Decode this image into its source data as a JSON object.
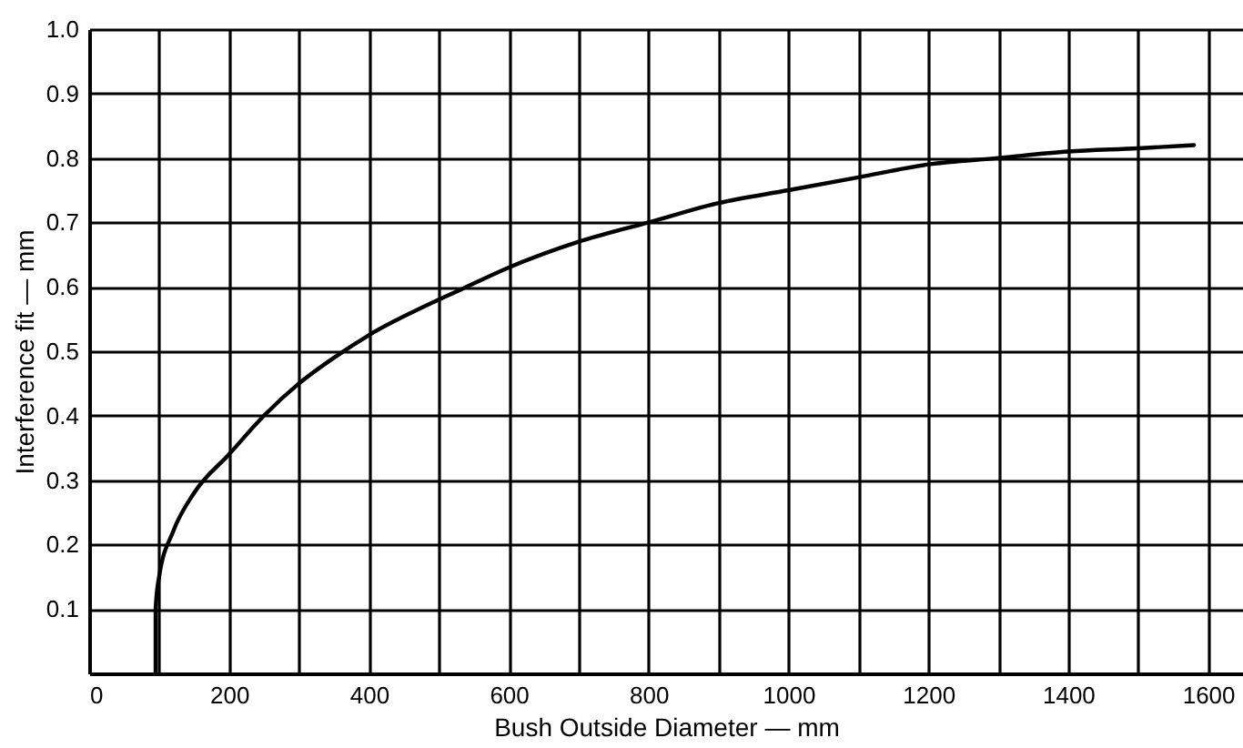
{
  "chart_data": {
    "type": "line",
    "xlabel": "Bush Outside Diameter — mm",
    "ylabel": "Interference fit — mm",
    "x": [
      95,
      95,
      100,
      120,
      150,
      200,
      250,
      300,
      350,
      400,
      500,
      530,
      600,
      700,
      800,
      900,
      1000,
      1100,
      1200,
      1300,
      1400,
      1500,
      1580
    ],
    "series": [
      {
        "color": "#000000",
        "values": [
          0,
          0.1,
          0.15,
          0.22,
          0.28,
          0.34,
          0.4,
          0.45,
          0.49,
          0.525,
          0.58,
          0.595,
          0.63,
          0.67,
          0.7,
          0.73,
          0.75,
          0.77,
          0.79,
          0.8,
          0.81,
          0.815,
          0.82
        ]
      }
    ],
    "xlim": [
      0,
      1650
    ],
    "ylim": [
      0,
      1.0
    ],
    "xticks": [
      0,
      {
        "value": 100,
        "label": null
      },
      200,
      {
        "value": 300,
        "label": null
      },
      400,
      {
        "value": 500,
        "label": null
      },
      600,
      {
        "value": 700,
        "label": null
      },
      800,
      {
        "value": 900,
        "label": null
      },
      1000,
      {
        "value": 1100,
        "label": null
      },
      1200,
      {
        "value": 1300,
        "label": null
      },
      1400,
      {
        "value": 1500,
        "label": null
      },
      1600
    ],
    "yticks": [
      {
        "value": 0,
        "label": null
      },
      0.1,
      0.2,
      0.3,
      0.4,
      0.5,
      0.6,
      0.7,
      0.8,
      0.9,
      {
        "value": 1,
        "label": "1.0"
      }
    ],
    "grid": true,
    "marker": "none",
    "line_style": "solid"
  }
}
